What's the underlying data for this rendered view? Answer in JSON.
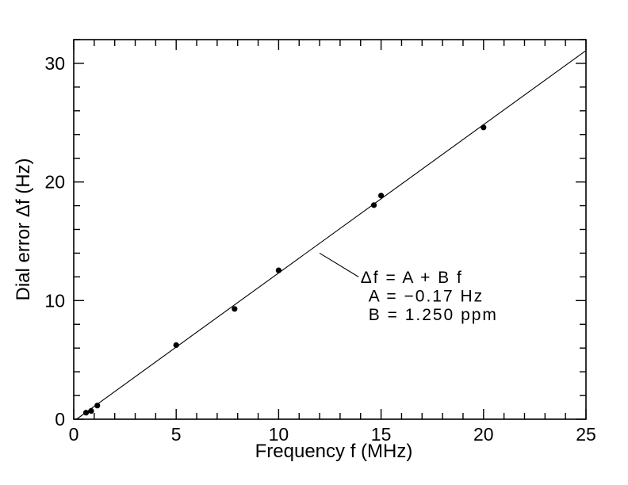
{
  "chart_data": {
    "type": "scatter",
    "title": "",
    "xlabel": "Frequency f (MHz)",
    "ylabel": "Dial error Δf (Hz)",
    "xlim": [
      0,
      25
    ],
    "ylim": [
      0,
      32
    ],
    "x_major_ticks": [
      0,
      5,
      10,
      15,
      20,
      25
    ],
    "x_tick_labels": [
      "0",
      "5",
      "10",
      "15",
      "20",
      "25"
    ],
    "x_minor_step": 1,
    "y_major_ticks": [
      0,
      10,
      20,
      30
    ],
    "y_tick_labels": [
      "0",
      "10",
      "20",
      "30"
    ],
    "y_minor_step": 2,
    "grid": false,
    "legend": null,
    "points": [
      [
        0.6,
        0.55
      ],
      [
        0.85,
        0.7
      ],
      [
        1.15,
        1.15
      ],
      [
        5.0,
        6.25
      ],
      [
        7.85,
        9.3
      ],
      [
        10.0,
        12.55
      ],
      [
        14.65,
        18.05
      ],
      [
        15.0,
        18.85
      ],
      [
        20.0,
        24.6
      ]
    ],
    "fit_line": {
      "equation": "Δf = A + B f",
      "A_hz": -0.17,
      "B_ppm": 1.25,
      "x_end": 25
    },
    "annotation": {
      "lines": [
        "Δf = A + B f",
        "A = −0.17 Hz",
        "B = 1.250 ppm"
      ],
      "anchor_data": [
        14.0,
        11.5
      ],
      "leader_data": [
        [
          12.0,
          14.0
        ],
        [
          13.9,
          12.0
        ]
      ]
    },
    "colors": {
      "foreground": "#000000",
      "background": "#ffffff"
    }
  }
}
